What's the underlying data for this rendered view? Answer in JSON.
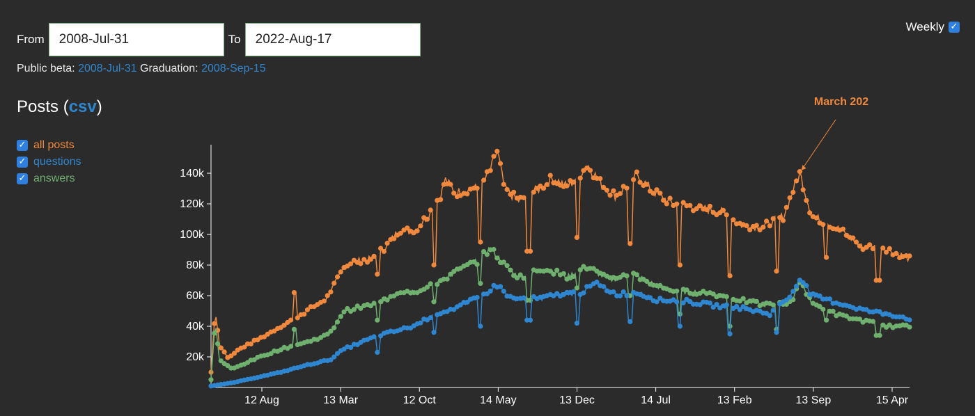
{
  "controls": {
    "from_label": "From",
    "from_value": "2008-Jul-31",
    "to_label": "To",
    "to_value": "2022-Aug-17",
    "weekly_label": "Weekly",
    "weekly_checked": true
  },
  "milestones": {
    "beta_label": "Public beta:",
    "beta_date": "2008-Jul-31",
    "graduation_label": "Graduation:",
    "graduation_date": "2008-Sep-15"
  },
  "heading": {
    "text": "Posts",
    "open_paren": "(",
    "link": "csv",
    "close_paren": ")"
  },
  "legend": [
    {
      "label": "all posts",
      "color": "#f0883e",
      "checked": true
    },
    {
      "label": "questions",
      "color": "#2f86d0",
      "checked": true
    },
    {
      "label": "answers",
      "color": "#6fb06f",
      "checked": true
    }
  ],
  "chart_data": {
    "type": "line",
    "x_ticks": [
      "12 Aug",
      "13 Mar",
      "12 Oct",
      "14 May",
      "13 Dec",
      "14 Jul",
      "13 Feb",
      "13 Sep",
      "15 Apr"
    ],
    "y_ticks": [
      "20k",
      "40k",
      "60k",
      "80k",
      "100k",
      "120k",
      "140k"
    ],
    "ylim": [
      0,
      158000
    ],
    "annotation": {
      "text": "March 202",
      "color": "#f0883e",
      "x_frac": 0.843,
      "y": 140000
    },
    "series": [
      {
        "name": "all posts",
        "color": "#f0883e",
        "points": [
          [
            0,
            10000
          ],
          [
            0.006,
            51000
          ],
          [
            0.012,
            28000
          ],
          [
            0.025,
            19000
          ],
          [
            0.04,
            25000
          ],
          [
            0.07,
            32000
          ],
          [
            0.1,
            40000
          ],
          [
            0.13,
            48000
          ],
          [
            0.165,
            58000
          ],
          [
            0.19,
            78000
          ],
          [
            0.2,
            82000
          ],
          [
            0.23,
            84000
          ],
          [
            0.25,
            92000
          ],
          [
            0.27,
            103000
          ],
          [
            0.29,
            102000
          ],
          [
            0.31,
            112000
          ],
          [
            0.33,
            127000
          ],
          [
            0.335,
            136000
          ],
          [
            0.35,
            127000
          ],
          [
            0.37,
            130000
          ],
          [
            0.385,
            130000
          ],
          [
            0.4,
            142000
          ],
          [
            0.41,
            155000
          ],
          [
            0.42,
            130000
          ],
          [
            0.44,
            122000
          ],
          [
            0.47,
            130000
          ],
          [
            0.49,
            137000
          ],
          [
            0.51,
            131000
          ],
          [
            0.54,
            145000
          ],
          [
            0.56,
            132000
          ],
          [
            0.58,
            125000
          ],
          [
            0.61,
            139000
          ],
          [
            0.63,
            129000
          ],
          [
            0.66,
            120000
          ],
          [
            0.69,
            118000
          ],
          [
            0.73,
            115000
          ],
          [
            0.76,
            106000
          ],
          [
            0.79,
            105000
          ],
          [
            0.82,
            112000
          ],
          [
            0.83,
            125000
          ],
          [
            0.843,
            140000
          ],
          [
            0.86,
            112000
          ],
          [
            0.89,
            106000
          ],
          [
            0.91,
            100000
          ],
          [
            0.93,
            92000
          ],
          [
            0.96,
            92000
          ],
          [
            1.0,
            84000
          ]
        ],
        "dips": [
          [
            0.12,
            62000
          ],
          [
            0.24,
            74000
          ],
          [
            0.32,
            80000
          ],
          [
            0.385,
            95000
          ],
          [
            0.455,
            89000
          ],
          [
            0.525,
            98000
          ],
          [
            0.6,
            94000
          ],
          [
            0.67,
            80000
          ],
          [
            0.742,
            73000
          ],
          [
            0.81,
            76000
          ],
          [
            0.88,
            85000
          ],
          [
            0.955,
            70000
          ]
        ]
      },
      {
        "name": "questions",
        "color": "#2f86d0",
        "points": [
          [
            0,
            1000
          ],
          [
            0.03,
            3000
          ],
          [
            0.07,
            7000
          ],
          [
            0.1,
            10000
          ],
          [
            0.14,
            15000
          ],
          [
            0.17,
            18000
          ],
          [
            0.19,
            25000
          ],
          [
            0.24,
            34000
          ],
          [
            0.29,
            40000
          ],
          [
            0.32,
            48000
          ],
          [
            0.35,
            52000
          ],
          [
            0.38,
            58000
          ],
          [
            0.41,
            67000
          ],
          [
            0.43,
            58000
          ],
          [
            0.47,
            58000
          ],
          [
            0.5,
            61000
          ],
          [
            0.53,
            62000
          ],
          [
            0.55,
            68000
          ],
          [
            0.58,
            61000
          ],
          [
            0.61,
            62000
          ],
          [
            0.64,
            57000
          ],
          [
            0.67,
            57000
          ],
          [
            0.7,
            55000
          ],
          [
            0.73,
            53000
          ],
          [
            0.76,
            52000
          ],
          [
            0.8,
            48000
          ],
          [
            0.83,
            60000
          ],
          [
            0.843,
            72000
          ],
          [
            0.86,
            60000
          ],
          [
            0.9,
            55000
          ],
          [
            0.94,
            50000
          ],
          [
            0.97,
            48000
          ],
          [
            1.0,
            45000
          ]
        ],
        "dips": [
          [
            0.24,
            23000
          ],
          [
            0.32,
            36000
          ],
          [
            0.385,
            40000
          ],
          [
            0.455,
            44000
          ],
          [
            0.525,
            42000
          ],
          [
            0.6,
            43000
          ],
          [
            0.67,
            40000
          ],
          [
            0.742,
            35000
          ],
          [
            0.81,
            36000
          ]
        ]
      },
      {
        "name": "answers",
        "color": "#6fb06f",
        "points": [
          [
            0,
            5000
          ],
          [
            0.006,
            44000
          ],
          [
            0.012,
            18000
          ],
          [
            0.03,
            12000
          ],
          [
            0.07,
            20000
          ],
          [
            0.1,
            25000
          ],
          [
            0.14,
            30000
          ],
          [
            0.17,
            35000
          ],
          [
            0.19,
            50000
          ],
          [
            0.24,
            55000
          ],
          [
            0.27,
            63000
          ],
          [
            0.3,
            63000
          ],
          [
            0.33,
            70000
          ],
          [
            0.36,
            78000
          ],
          [
            0.38,
            82000
          ],
          [
            0.4,
            91000
          ],
          [
            0.42,
            80000
          ],
          [
            0.44,
            72000
          ],
          [
            0.48,
            78000
          ],
          [
            0.51,
            72000
          ],
          [
            0.54,
            79000
          ],
          [
            0.57,
            70000
          ],
          [
            0.6,
            75000
          ],
          [
            0.64,
            66000
          ],
          [
            0.67,
            63000
          ],
          [
            0.71,
            62000
          ],
          [
            0.75,
            58000
          ],
          [
            0.79,
            54000
          ],
          [
            0.83,
            55000
          ],
          [
            0.843,
            70000
          ],
          [
            0.86,
            55000
          ],
          [
            0.9,
            47000
          ],
          [
            0.94,
            43000
          ],
          [
            0.97,
            40000
          ],
          [
            1.0,
            40000
          ]
        ],
        "dips": [
          [
            0.12,
            38000
          ],
          [
            0.24,
            44000
          ],
          [
            0.32,
            56000
          ],
          [
            0.385,
            68000
          ],
          [
            0.455,
            57000
          ],
          [
            0.525,
            65000
          ],
          [
            0.6,
            60000
          ],
          [
            0.67,
            48000
          ],
          [
            0.742,
            40000
          ],
          [
            0.81,
            38000
          ],
          [
            0.88,
            44000
          ],
          [
            0.955,
            34000
          ]
        ]
      }
    ]
  }
}
